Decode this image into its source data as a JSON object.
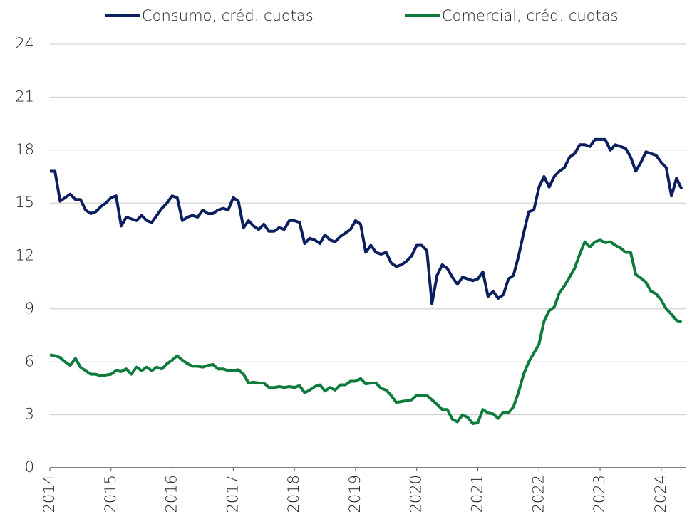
{
  "chart_data": {
    "type": "line",
    "x": [
      2014,
      2014.083,
      2014.167,
      2014.25,
      2014.333,
      2014.417,
      2014.5,
      2014.583,
      2014.667,
      2014.75,
      2014.833,
      2014.917,
      2015,
      2015.083,
      2015.167,
      2015.25,
      2015.333,
      2015.417,
      2015.5,
      2015.583,
      2015.667,
      2015.75,
      2015.833,
      2015.917,
      2016,
      2016.083,
      2016.167,
      2016.25,
      2016.333,
      2016.417,
      2016.5,
      2016.583,
      2016.667,
      2016.75,
      2016.833,
      2016.917,
      2017,
      2017.083,
      2017.167,
      2017.25,
      2017.333,
      2017.417,
      2017.5,
      2017.583,
      2017.667,
      2017.75,
      2017.833,
      2017.917,
      2018,
      2018.083,
      2018.167,
      2018.25,
      2018.333,
      2018.417,
      2018.5,
      2018.583,
      2018.667,
      2018.75,
      2018.833,
      2018.917,
      2019,
      2019.083,
      2019.167,
      2019.25,
      2019.333,
      2019.417,
      2019.5,
      2019.583,
      2019.667,
      2019.75,
      2019.833,
      2019.917,
      2020,
      2020.083,
      2020.167,
      2020.25,
      2020.333,
      2020.417,
      2020.5,
      2020.583,
      2020.667,
      2020.75,
      2020.833,
      2020.917,
      2021,
      2021.083,
      2021.167,
      2021.25,
      2021.333,
      2021.417,
      2021.5,
      2021.583,
      2021.667,
      2021.75,
      2021.833,
      2021.917,
      2022,
      2022.083,
      2022.167,
      2022.25,
      2022.333,
      2022.417,
      2022.5,
      2022.583,
      2022.667,
      2022.75,
      2022.833,
      2022.917,
      2023,
      2023.083,
      2023.167,
      2023.25,
      2023.333,
      2023.417,
      2023.5,
      2023.583,
      2023.667,
      2023.75,
      2023.833,
      2023.917,
      2024,
      2024.083,
      2024.167,
      2024.25,
      2024.333
    ],
    "series": [
      {
        "name": "Consumo, créd. cuotas",
        "color": "#0b1f5e",
        "values": [
          16.8,
          16.8,
          15.1,
          15.3,
          15.5,
          15.2,
          15.2,
          14.6,
          14.4,
          14.5,
          14.8,
          15.0,
          15.3,
          15.4,
          13.7,
          14.2,
          14.1,
          14.0,
          14.3,
          14.0,
          13.9,
          14.3,
          14.7,
          15.0,
          15.4,
          15.3,
          14.0,
          14.2,
          14.3,
          14.2,
          14.6,
          14.4,
          14.4,
          14.6,
          14.7,
          14.6,
          15.3,
          15.1,
          13.6,
          14.0,
          13.7,
          13.5,
          13.8,
          13.4,
          13.4,
          13.6,
          13.5,
          14.0,
          14.0,
          13.9,
          12.7,
          13.0,
          12.9,
          12.7,
          13.2,
          12.9,
          12.8,
          13.1,
          13.3,
          13.5,
          14.0,
          13.8,
          12.2,
          12.6,
          12.2,
          12.1,
          12.2,
          11.6,
          11.4,
          11.5,
          11.7,
          12.0,
          12.6,
          12.6,
          12.3,
          9.3,
          10.9,
          11.5,
          11.3,
          10.8,
          10.4,
          10.8,
          10.7,
          10.6,
          10.7,
          11.1,
          9.7,
          10.0,
          9.6,
          9.8,
          10.7,
          10.9,
          12.0,
          13.3,
          14.5,
          14.6,
          15.9,
          16.5,
          15.9,
          16.5,
          16.8,
          17.0,
          17.6,
          17.8,
          18.3,
          18.3,
          18.2,
          18.6,
          18.6,
          18.6,
          18.0,
          18.3,
          18.2,
          18.1,
          17.6,
          16.8,
          17.3,
          17.9,
          17.8,
          17.7,
          17.3,
          17.0,
          15.4,
          16.4,
          15.8
        ]
      },
      {
        "name": "Comercial, créd. cuotas",
        "color": "#0e7a3b",
        "values": [
          6.4,
          6.35,
          6.25,
          6.0,
          5.8,
          6.2,
          5.7,
          5.5,
          5.3,
          5.3,
          5.2,
          5.25,
          5.3,
          5.5,
          5.45,
          5.6,
          5.3,
          5.7,
          5.5,
          5.7,
          5.5,
          5.7,
          5.6,
          5.9,
          6.1,
          6.35,
          6.1,
          5.9,
          5.75,
          5.75,
          5.7,
          5.8,
          5.85,
          5.6,
          5.6,
          5.5,
          5.5,
          5.55,
          5.3,
          4.8,
          4.85,
          4.8,
          4.8,
          4.55,
          4.55,
          4.6,
          4.55,
          4.6,
          4.55,
          4.65,
          4.25,
          4.4,
          4.6,
          4.7,
          4.35,
          4.55,
          4.4,
          4.7,
          4.7,
          4.9,
          4.9,
          5.05,
          4.75,
          4.8,
          4.8,
          4.5,
          4.4,
          4.1,
          3.7,
          3.75,
          3.8,
          3.85,
          4.1,
          4.1,
          4.1,
          3.85,
          3.6,
          3.3,
          3.3,
          2.75,
          2.6,
          3.0,
          2.85,
          2.5,
          2.55,
          3.3,
          3.1,
          3.05,
          2.8,
          3.15,
          3.1,
          3.45,
          4.3,
          5.3,
          6.0,
          6.5,
          7.0,
          8.3,
          8.9,
          9.1,
          9.9,
          10.3,
          10.8,
          11.3,
          12.1,
          12.8,
          12.5,
          12.8,
          12.9,
          12.75,
          12.8,
          12.6,
          12.45,
          12.2,
          12.2,
          10.95,
          10.75,
          10.5,
          10.0,
          9.85,
          9.5,
          9.0,
          8.7,
          8.35,
          8.25
        ]
      }
    ],
    "xlim": [
      2014,
      2024.41
    ],
    "xticks": [
      2014,
      2015,
      2016,
      2017,
      2018,
      2019,
      2020,
      2021,
      2022,
      2023,
      2024
    ],
    "ylim": [
      0,
      24
    ],
    "yticks": [
      0,
      3,
      6,
      9,
      12,
      15,
      18,
      21,
      24
    ],
    "grid": true,
    "legend": "top"
  }
}
